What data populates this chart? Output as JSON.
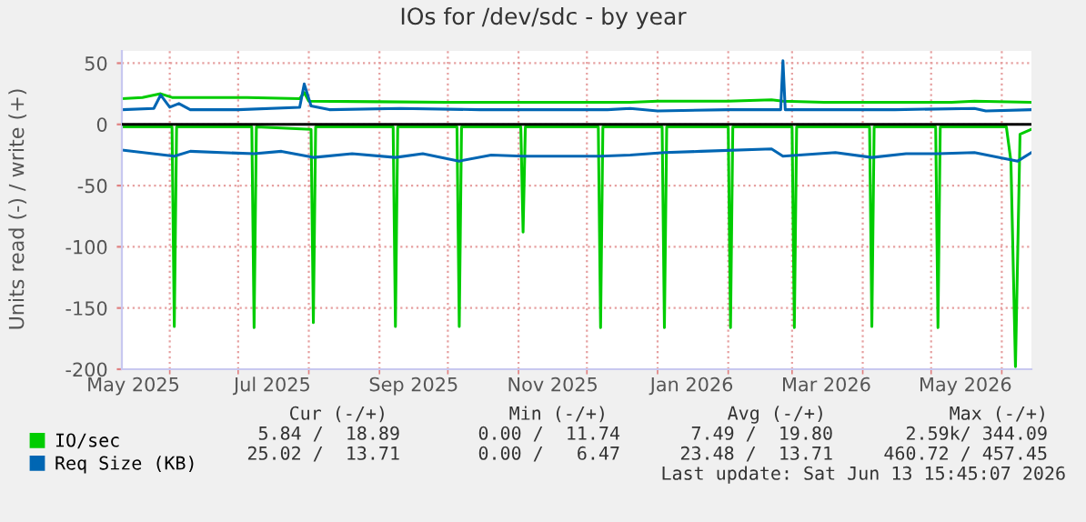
{
  "chart_data": {
    "type": "line",
    "title": "IOs for /dev/sdc - by year",
    "ylabel": "Units read (-) / write (+)",
    "xlim": [
      "2025-05-11",
      "2026-06-14"
    ],
    "ylim": [
      -200,
      60
    ],
    "yticks": [
      -200,
      -150,
      -100,
      -50,
      0,
      50
    ],
    "xticks": [
      {
        "value": "2025-05-16",
        "label": "May 2025"
      },
      {
        "value": "2025-06-01",
        "label": null
      },
      {
        "value": "2025-07-01",
        "label": null
      },
      {
        "value": "2025-07-16",
        "label": "Jul 2025"
      },
      {
        "value": "2025-08-01",
        "label": null
      },
      {
        "value": "2025-09-01",
        "label": null
      },
      {
        "value": "2025-09-16",
        "label": "Sep 2025"
      },
      {
        "value": "2025-10-01",
        "label": null
      },
      {
        "value": "2025-11-01",
        "label": null
      },
      {
        "value": "2025-11-16",
        "label": "Nov 2025"
      },
      {
        "value": "2025-12-01",
        "label": null
      },
      {
        "value": "2026-01-01",
        "label": null
      },
      {
        "value": "2026-01-16",
        "label": "Jan 2026"
      },
      {
        "value": "2026-02-01",
        "label": null
      },
      {
        "value": "2026-03-01",
        "label": null
      },
      {
        "value": "2026-03-16",
        "label": "Mar 2026"
      },
      {
        "value": "2026-04-01",
        "label": null
      },
      {
        "value": "2026-05-01",
        "label": null
      },
      {
        "value": "2026-05-16",
        "label": "May 2026"
      },
      {
        "value": "2026-06-01",
        "label": null
      }
    ],
    "grid": true,
    "legend": "bottom left",
    "marker": "none",
    "line_style": "solid",
    "ref_lines": [
      {
        "axis": "y",
        "value": 0,
        "color": "#000000"
      }
    ],
    "series": [
      {
        "name": "IO/sec",
        "color": "#00cc00",
        "x": [
          "2025-05-11",
          "2025-05-20",
          "2025-05-28",
          "2025-06-02",
          "2025-06-20",
          "2025-07-05",
          "2025-07-28",
          "2025-07-30",
          "2025-08-01",
          "2025-09-01",
          "2025-10-01",
          "2025-12-01",
          "2025-12-20",
          "2026-01-01",
          "2026-02-01",
          "2026-02-20",
          "2026-02-25",
          "2026-03-15",
          "2026-04-15",
          "2026-05-10",
          "2026-05-20",
          "2026-06-14"
        ],
        "values": [
          21,
          22,
          25,
          22,
          22,
          22,
          21,
          26,
          19,
          18.5,
          18,
          18,
          18,
          19,
          19,
          20,
          19,
          18,
          18,
          18,
          19,
          18
        ]
      },
      {
        "color": "#00cc00",
        "x": [
          "2025-05-11",
          "2025-06-02",
          "2025-06-03",
          "2025-06-04",
          "2025-07-07",
          "2025-07-08",
          "2025-07-09",
          "2025-08-02",
          "2025-08-03",
          "2025-08-04",
          "2025-09-07",
          "2025-09-08",
          "2025-09-09",
          "2025-10-05",
          "2025-10-06",
          "2025-10-07",
          "2025-11-02",
          "2025-11-03",
          "2025-11-04",
          "2025-12-06",
          "2025-12-07",
          "2025-12-08",
          "2026-01-03",
          "2026-01-04",
          "2026-01-05",
          "2026-02-01",
          "2026-02-02",
          "2026-02-03",
          "2026-03-01",
          "2026-03-02",
          "2026-03-03",
          "2026-04-04",
          "2026-04-05",
          "2026-04-06",
          "2026-05-03",
          "2026-05-04",
          "2026-05-05",
          "2026-06-03",
          "2026-06-05",
          "2026-06-07",
          "2026-06-09",
          "2026-06-14"
        ],
        "values": [
          -2,
          -2,
          -165,
          -2,
          -2,
          -166,
          -2,
          -4,
          -162,
          -2,
          -2,
          -165,
          -2,
          -2,
          -165,
          -2,
          -2,
          -88,
          -2,
          -2,
          -166,
          -2,
          -2,
          -166,
          -2,
          -2,
          -166,
          -2,
          -2,
          -166,
          -2,
          -2,
          -165,
          -2,
          -2,
          -166,
          -2,
          -2,
          -30,
          -198,
          -8,
          -4
        ]
      },
      {
        "name": "Req Size (KB)",
        "color": "#0066b3",
        "x": [
          "2025-05-11",
          "2025-05-25",
          "2025-05-28",
          "2025-06-01",
          "2025-06-05",
          "2025-06-10",
          "2025-07-01",
          "2025-07-28",
          "2025-07-30",
          "2025-08-02",
          "2025-08-10",
          "2025-09-10",
          "2025-10-15",
          "2025-12-10",
          "2025-12-20",
          "2026-01-01",
          "2026-02-01",
          "2026-02-24",
          "2026-02-25",
          "2026-02-26",
          "2026-03-15",
          "2026-04-15",
          "2026-05-20",
          "2026-05-25",
          "2026-06-14"
        ],
        "values": [
          12,
          13,
          24,
          14,
          17,
          12,
          12,
          14,
          33,
          15,
          12,
          13,
          12,
          12,
          13,
          11,
          12,
          12,
          52,
          12,
          12,
          12,
          13,
          11,
          12
        ]
      },
      {
        "color": "#0066b3",
        "x": [
          "2025-05-11",
          "2025-06-03",
          "2025-06-10",
          "2025-07-08",
          "2025-07-20",
          "2025-08-03",
          "2025-08-20",
          "2025-09-08",
          "2025-09-20",
          "2025-10-06",
          "2025-10-20",
          "2025-11-03",
          "2025-12-07",
          "2025-12-20",
          "2026-01-04",
          "2026-01-20",
          "2026-02-20",
          "2026-02-25",
          "2026-03-20",
          "2026-04-05",
          "2026-04-20",
          "2026-05-04",
          "2026-05-20",
          "2026-06-08",
          "2026-06-14"
        ],
        "values": [
          -21,
          -26,
          -22,
          -24,
          -22,
          -27,
          -24,
          -27,
          -24,
          -30,
          -25,
          -26,
          -26,
          -25,
          -23,
          -22,
          -20,
          -26,
          -23,
          -27,
          -24,
          -24,
          -23,
          -30,
          -23
        ]
      }
    ],
    "annotations": [
      "Cur (-/+)",
      "Min (-/+)",
      "Avg (-/+)",
      "Max (-/+)",
      "5.84 /  18.89",
      "0.00 /  11.74",
      "7.49 /  19.80",
      "2.59k/ 344.09",
      "25.02 /  13.71",
      "0.00 /   6.47",
      "23.48 /  13.71",
      "460.72 / 457.45",
      "Last update: Sat Jun 13 15:45:07 2026"
    ]
  }
}
